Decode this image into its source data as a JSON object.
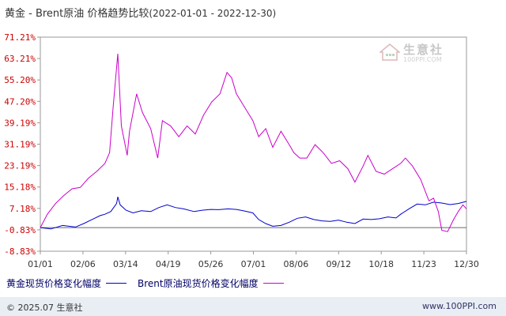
{
  "header": {
    "title": "黄金 - Brent原油 价格趋势比较",
    "date_range": "(2022-01-01 - 2022-12-30)"
  },
  "watermark": {
    "name": "生意社",
    "url": "100PPI.COM"
  },
  "legend": {
    "items": [
      {
        "label": "黄金现货价格变化幅度",
        "color": "#0000cc"
      },
      {
        "label": "Brent原油现货价格变化幅度",
        "color": "#cc00cc"
      }
    ]
  },
  "footer": {
    "copyright": "© 2025.07 生意社",
    "site": "www.100PPI.com"
  },
  "colors": {
    "gold": "#0000cc",
    "brent": "#cc00cc",
    "tick_y": "#cc0000",
    "zero_line": "#666666",
    "footer_bg": "#e8eef4"
  },
  "chart_data": {
    "type": "line",
    "title": "黄金 - Brent原油 价格趋势比较",
    "y_ticks": [
      "71.21%",
      "63.21%",
      "55.20%",
      "47.20%",
      "39.19%",
      "31.19%",
      "23.19%",
      "15.18%",
      "7.18%",
      "-0.83%",
      "-8.83%"
    ],
    "y_tick_values": [
      71.21,
      63.21,
      55.2,
      47.2,
      39.19,
      31.19,
      23.19,
      15.18,
      7.18,
      -0.83,
      -8.83
    ],
    "ylim": [
      -8.83,
      71.21
    ],
    "x_ticks": [
      "01/01",
      "02/06",
      "03/14",
      "04/19",
      "05/26",
      "07/01",
      "08/06",
      "09/12",
      "10/18",
      "11/23",
      "12/30"
    ],
    "x_range": [
      "2022-01-01",
      "2022-12-30"
    ],
    "grid": false,
    "legend_position": "bottom",
    "series": [
      {
        "name": "黄金现货价格变化幅度",
        "color": "#0000cc",
        "points": [
          [
            "2022-01-01",
            0
          ],
          [
            "2022-01-10",
            -0.5
          ],
          [
            "2022-01-20",
            0.8
          ],
          [
            "2022-01-31",
            0.2
          ],
          [
            "2022-02-07",
            1.5
          ],
          [
            "2022-02-14",
            3.0
          ],
          [
            "2022-02-21",
            4.5
          ],
          [
            "2022-02-25",
            5.0
          ],
          [
            "2022-03-02",
            6.0
          ],
          [
            "2022-03-07",
            9.0
          ],
          [
            "2022-03-08",
            11.5
          ],
          [
            "2022-03-10",
            8.5
          ],
          [
            "2022-03-15",
            6.5
          ],
          [
            "2022-03-21",
            5.5
          ],
          [
            "2022-03-28",
            6.3
          ],
          [
            "2022-04-05",
            6.0
          ],
          [
            "2022-04-12",
            7.5
          ],
          [
            "2022-04-19",
            8.5
          ],
          [
            "2022-04-26",
            7.5
          ],
          [
            "2022-05-03",
            7.0
          ],
          [
            "2022-05-12",
            6.0
          ],
          [
            "2022-05-19",
            6.5
          ],
          [
            "2022-05-26",
            6.8
          ],
          [
            "2022-06-02",
            6.7
          ],
          [
            "2022-06-10",
            7.0
          ],
          [
            "2022-06-17",
            6.8
          ],
          [
            "2022-06-24",
            6.2
          ],
          [
            "2022-07-01",
            5.5
          ],
          [
            "2022-07-06",
            3.0
          ],
          [
            "2022-07-12",
            1.5
          ],
          [
            "2022-07-18",
            0.5
          ],
          [
            "2022-07-25",
            0.8
          ],
          [
            "2022-08-01",
            2.0
          ],
          [
            "2022-08-08",
            3.5
          ],
          [
            "2022-08-15",
            4.0
          ],
          [
            "2022-08-22",
            3.0
          ],
          [
            "2022-08-29",
            2.5
          ],
          [
            "2022-09-05",
            2.3
          ],
          [
            "2022-09-12",
            2.8
          ],
          [
            "2022-09-19",
            2.0
          ],
          [
            "2022-09-26",
            1.5
          ],
          [
            "2022-10-03",
            3.2
          ],
          [
            "2022-10-10",
            3.0
          ],
          [
            "2022-10-17",
            3.3
          ],
          [
            "2022-10-24",
            4.0
          ],
          [
            "2022-10-31",
            3.6
          ],
          [
            "2022-11-04",
            5.0
          ],
          [
            "2022-11-11",
            7.0
          ],
          [
            "2022-11-18",
            8.8
          ],
          [
            "2022-11-25",
            8.5
          ],
          [
            "2022-12-02",
            9.5
          ],
          [
            "2022-12-09",
            9.2
          ],
          [
            "2022-12-16",
            8.6
          ],
          [
            "2022-12-23",
            9.0
          ],
          [
            "2022-12-30",
            9.8
          ]
        ]
      },
      {
        "name": "Brent原油现货价格变化幅度",
        "color": "#cc00cc",
        "points": [
          [
            "2022-01-01",
            0
          ],
          [
            "2022-01-07",
            5.0
          ],
          [
            "2022-01-14",
            9.0
          ],
          [
            "2022-01-21",
            12.0
          ],
          [
            "2022-01-28",
            14.5
          ],
          [
            "2022-02-04",
            15.0
          ],
          [
            "2022-02-11",
            18.5
          ],
          [
            "2022-02-18",
            21.0
          ],
          [
            "2022-02-25",
            24.0
          ],
          [
            "2022-03-01",
            28.0
          ],
          [
            "2022-03-04",
            45.0
          ],
          [
            "2022-03-08",
            65.0
          ],
          [
            "2022-03-11",
            38.0
          ],
          [
            "2022-03-16",
            27.0
          ],
          [
            "2022-03-18",
            36.0
          ],
          [
            "2022-03-24",
            50.0
          ],
          [
            "2022-03-29",
            43.0
          ],
          [
            "2022-04-05",
            37.0
          ],
          [
            "2022-04-11",
            26.0
          ],
          [
            "2022-04-15",
            40.0
          ],
          [
            "2022-04-22",
            38.0
          ],
          [
            "2022-04-29",
            34.0
          ],
          [
            "2022-05-06",
            38.0
          ],
          [
            "2022-05-13",
            35.0
          ],
          [
            "2022-05-20",
            42.0
          ],
          [
            "2022-05-27",
            47.0
          ],
          [
            "2022-06-03",
            50.0
          ],
          [
            "2022-06-09",
            58.0
          ],
          [
            "2022-06-13",
            56.0
          ],
          [
            "2022-06-17",
            50.0
          ],
          [
            "2022-06-24",
            45.0
          ],
          [
            "2022-07-01",
            40.0
          ],
          [
            "2022-07-06",
            34.0
          ],
          [
            "2022-07-12",
            37.0
          ],
          [
            "2022-07-18",
            30.0
          ],
          [
            "2022-07-25",
            36.0
          ],
          [
            "2022-08-01",
            31.0
          ],
          [
            "2022-08-05",
            28.0
          ],
          [
            "2022-08-10",
            26.0
          ],
          [
            "2022-08-16",
            26.0
          ],
          [
            "2022-08-23",
            31.0
          ],
          [
            "2022-08-30",
            28.0
          ],
          [
            "2022-09-06",
            24.0
          ],
          [
            "2022-09-13",
            25.0
          ],
          [
            "2022-09-20",
            22.0
          ],
          [
            "2022-09-26",
            17.0
          ],
          [
            "2022-10-03",
            23.0
          ],
          [
            "2022-10-07",
            27.0
          ],
          [
            "2022-10-14",
            21.0
          ],
          [
            "2022-10-21",
            20.0
          ],
          [
            "2022-10-28",
            22.0
          ],
          [
            "2022-11-04",
            24.0
          ],
          [
            "2022-11-08",
            26.0
          ],
          [
            "2022-11-14",
            23.0
          ],
          [
            "2022-11-21",
            18.0
          ],
          [
            "2022-11-28",
            10.0
          ],
          [
            "2022-12-02",
            11.0
          ],
          [
            "2022-12-06",
            6.0
          ],
          [
            "2022-12-09",
            -1.0
          ],
          [
            "2022-12-14",
            -1.5
          ],
          [
            "2022-12-19",
            3.0
          ],
          [
            "2022-12-23",
            6.0
          ],
          [
            "2022-12-27",
            8.5
          ],
          [
            "2022-12-30",
            7.0
          ]
        ]
      }
    ]
  }
}
